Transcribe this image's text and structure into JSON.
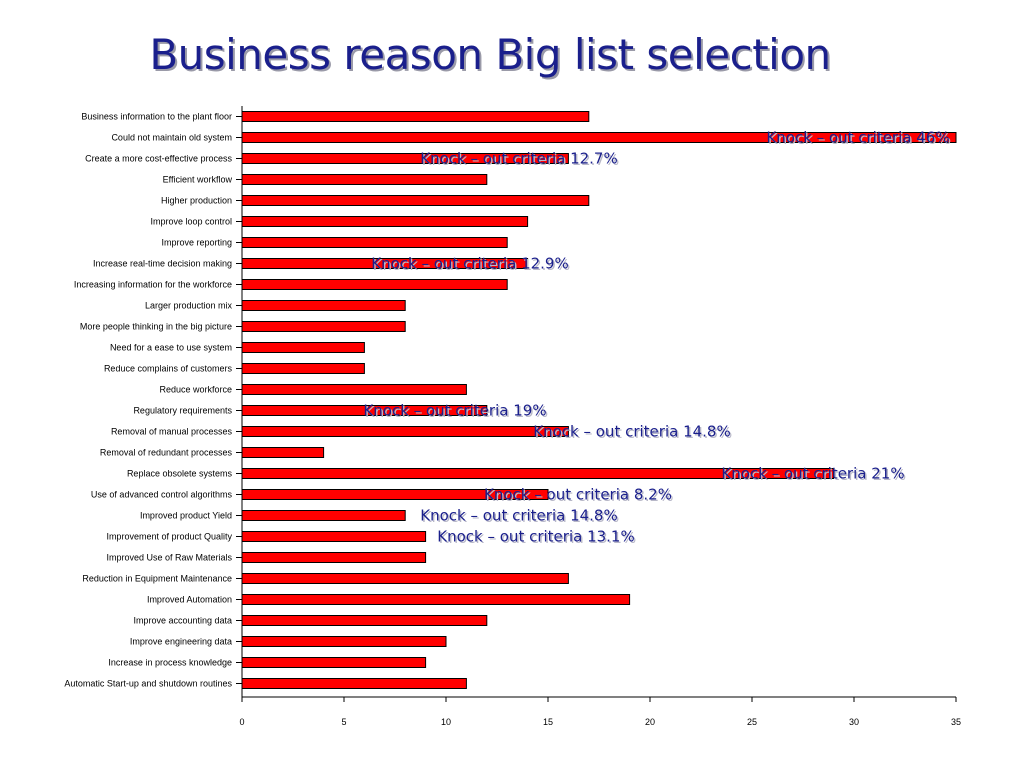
{
  "chart_data": {
    "type": "bar",
    "orientation": "horizontal",
    "title": "Business reason Big list selection",
    "categories": [
      "Business information to the plant floor",
      "Could not maintain old system",
      "Create a more cost-effective process",
      "Efficient workflow",
      "Higher production",
      "Improve loop control",
      "Improve reporting",
      "Increase real-time decision making",
      "Increasing information for the workforce",
      "Larger production mix",
      "More people thinking in the big picture",
      "Need for a ease to use system",
      "Reduce complains of customers",
      "Reduce workforce",
      "Regulatory requirements",
      "Removal of manual processes",
      "Removal of redundant processes",
      "Replace obsolete systems",
      "Use of advanced control algorithms",
      "Improved product Yield",
      "Improvement of product Quality",
      "Improved Use of Raw Materials",
      "Reduction in Equipment Maintenance",
      "Improved Automation",
      "Improve accounting data",
      "Improve engineering data",
      "Increase in process knowledge",
      "Automatic Start-up and shutdown routines"
    ],
    "values": [
      17,
      35,
      16,
      12,
      17,
      14,
      13,
      14,
      13,
      8,
      8,
      6,
      6,
      11,
      12,
      16,
      4,
      29,
      15,
      8,
      9,
      9,
      16,
      19,
      12,
      10,
      9,
      11
    ],
    "xlim": [
      0,
      35
    ],
    "xticks": [
      0,
      5,
      10,
      15,
      20,
      25,
      30,
      35
    ],
    "grid": false,
    "legend": "none",
    "bar_color": "#ff0000",
    "annotations": [
      {
        "text": "Knock – out criteria 46%",
        "category_index": 1
      },
      {
        "text": "Knock – out criteria 12.7%",
        "category_index": 2
      },
      {
        "text": "Knock – out criteria 12.9%",
        "category_index": 7
      },
      {
        "text": "Knock – out criteria 19%",
        "category_index": 14
      },
      {
        "text": "Knock – out criteria 14.8%",
        "category_index": 15
      },
      {
        "text": "Knock – out criteria 21%",
        "category_index": 17
      },
      {
        "text": "Knock – out criteria 8.2%",
        "category_index": 18
      },
      {
        "text": "Knock – out criteria 14.8%",
        "category_index": 19
      },
      {
        "text": "Knock – out criteria 13.1%",
        "category_index": 20
      }
    ],
    "annotation_color": "#1a1f8c"
  }
}
